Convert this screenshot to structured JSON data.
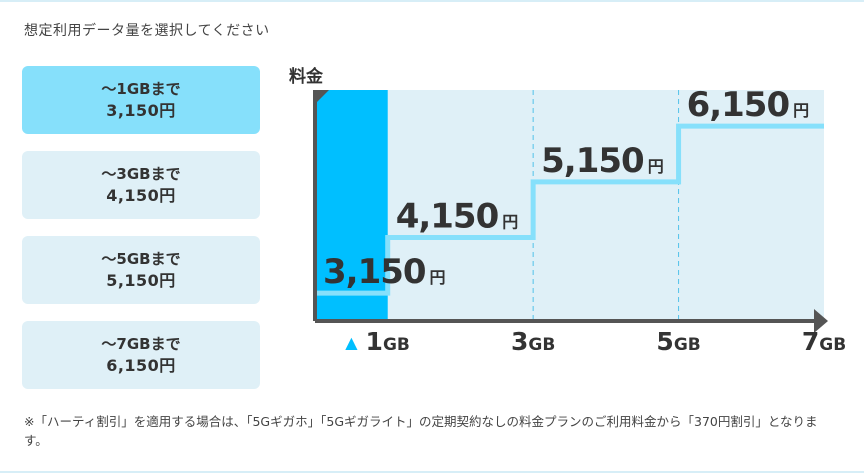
{
  "heading": "想定利用データ量を選択してください",
  "plans": [
    {
      "name": "～1GBまで",
      "price": "3,150円",
      "selected": true
    },
    {
      "name": "～3GBまで",
      "price": "4,150円",
      "selected": false
    },
    {
      "name": "～5GBまで",
      "price": "5,150円",
      "selected": false
    },
    {
      "name": "～7GBまで",
      "price": "6,150円",
      "selected": false
    }
  ],
  "note": "※「ハーティ割引」を適用する場合は、「5Gギガホ」「5Gギガライト」の定期契約なしの料金プランのご利用料金から「370円割引」となります。",
  "colors": {
    "selected_bg": "#86e0fb",
    "button_bg": "#dff0f7",
    "selected_bar": "#00bfff",
    "step_line": "#86e0fb",
    "chart_bg": "#dff0f7",
    "axis": "#555555"
  },
  "chart_data": {
    "type": "step",
    "ylabel": "料金",
    "x_ticks": [
      {
        "value": 1,
        "num": "1",
        "unit": "GB"
      },
      {
        "value": 3,
        "num": "3",
        "unit": "GB"
      },
      {
        "value": 5,
        "num": "5",
        "unit": "GB"
      },
      {
        "value": 7,
        "num": "7",
        "unit": "GB"
      }
    ],
    "xlim": [
      0,
      7
    ],
    "steps": [
      {
        "from": 0,
        "to": 1,
        "price": 3150,
        "num": "3,150",
        "unit": "円"
      },
      {
        "from": 1,
        "to": 3,
        "price": 4150,
        "num": "4,150",
        "unit": "円"
      },
      {
        "from": 3,
        "to": 5,
        "price": 5150,
        "num": "5,150",
        "unit": "円"
      },
      {
        "from": 5,
        "to": 7,
        "price": 6150,
        "num": "6,150",
        "unit": "円"
      }
    ],
    "selected_index": 0,
    "marker": "▲"
  }
}
